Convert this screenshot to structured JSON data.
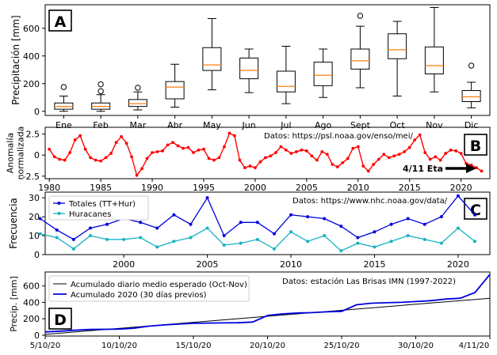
{
  "chart_data": [
    {
      "panel": "A",
      "type": "box",
      "ylabel": "Precipitación [mm]",
      "categories": [
        "Ene",
        "Feb",
        "Mar",
        "Abr",
        "May",
        "Jun",
        "Jul",
        "Ago",
        "Sept",
        "Oct",
        "Nov",
        "Dic"
      ],
      "yticks": [
        0,
        200,
        400,
        600
      ],
      "ylim": [
        -30,
        770
      ],
      "grid": false,
      "boxes": [
        {
          "whislo": 0,
          "q1": 15,
          "med": 35,
          "q3": 60,
          "whishi": 110,
          "fliers": [
            175
          ]
        },
        {
          "whislo": 0,
          "q1": 15,
          "med": 35,
          "q3": 60,
          "whishi": 120,
          "fliers": [
            195,
            145
          ]
        },
        {
          "whislo": 10,
          "q1": 35,
          "med": 55,
          "q3": 85,
          "whishi": 140,
          "fliers": [
            170
          ]
        },
        {
          "whislo": 30,
          "q1": 90,
          "med": 175,
          "q3": 215,
          "whishi": 340,
          "fliers": []
        },
        {
          "whislo": 155,
          "q1": 295,
          "med": 335,
          "q3": 460,
          "whishi": 670,
          "fliers": []
        },
        {
          "whislo": 135,
          "q1": 235,
          "med": 295,
          "q3": 385,
          "whishi": 450,
          "fliers": []
        },
        {
          "whislo": 55,
          "q1": 140,
          "med": 180,
          "q3": 290,
          "whishi": 470,
          "fliers": []
        },
        {
          "whislo": 100,
          "q1": 185,
          "med": 260,
          "q3": 355,
          "whishi": 450,
          "fliers": []
        },
        {
          "whislo": 170,
          "q1": 305,
          "med": 365,
          "q3": 450,
          "whishi": 615,
          "fliers": [
            690
          ]
        },
        {
          "whislo": 110,
          "q1": 380,
          "med": 445,
          "q3": 560,
          "whishi": 650,
          "fliers": []
        },
        {
          "whislo": 140,
          "q1": 270,
          "med": 330,
          "q3": 465,
          "whishi": 750,
          "fliers": []
        },
        {
          "whislo": 25,
          "q1": 70,
          "med": 105,
          "q3": 150,
          "whishi": 210,
          "fliers": [
            330
          ]
        }
      ],
      "colors": {
        "box": "#000000",
        "median": "#ff7f0e"
      }
    },
    {
      "panel": "B",
      "type": "line",
      "ylabel": [
        "Anomalía",
        "normalizada"
      ],
      "annotation": "Datos: https://psl.noaa.gov/enso/mei/",
      "arrow_label": "4/11 Eta",
      "xticks": [
        1980,
        1985,
        1990,
        1995,
        2000,
        2005,
        2010,
        2015,
        2020
      ],
      "yticks": [
        2.5,
        0,
        -2.5
      ],
      "ytick_labels": [
        "2.5",
        "0",
        "-2.5"
      ],
      "xlim": [
        1979.6,
        2022.8
      ],
      "ylim": [
        -2.8,
        3.3
      ],
      "color": "#ff0000",
      "x": [
        1980.0,
        1980.5,
        1981.0,
        1981.5,
        1982.0,
        1982.5,
        1983.0,
        1983.5,
        1984.0,
        1984.5,
        1985.0,
        1985.5,
        1986.0,
        1986.5,
        1987.0,
        1987.5,
        1988.0,
        1988.5,
        1989.0,
        1989.5,
        1990.0,
        1990.5,
        1991.0,
        1991.5,
        1992.0,
        1992.5,
        1993.0,
        1993.5,
        1994.0,
        1994.5,
        1995.0,
        1995.5,
        1996.0,
        1996.5,
        1997.0,
        1997.5,
        1998.0,
        1998.5,
        1999.0,
        1999.5,
        2000.0,
        2000.5,
        2001.0,
        2001.5,
        2002.0,
        2002.5,
        2003.0,
        2003.5,
        2004.0,
        2004.5,
        2005.0,
        2005.5,
        2006.0,
        2006.5,
        2007.0,
        2007.5,
        2008.0,
        2008.5,
        2009.0,
        2009.5,
        2010.0,
        2010.5,
        2011.0,
        2011.5,
        2012.0,
        2012.5,
        2013.0,
        2013.5,
        2014.0,
        2014.5,
        2015.0,
        2015.5,
        2016.0,
        2016.5,
        2017.0,
        2017.5,
        2018.0,
        2018.5,
        2019.0,
        2019.5,
        2020.0,
        2020.5,
        2021.0,
        2021.5,
        2022.0
      ],
      "y": [
        0.7,
        -0.2,
        -0.5,
        -0.6,
        0.3,
        1.8,
        2.3,
        0.7,
        -0.3,
        -0.6,
        -0.7,
        -0.3,
        0.2,
        1.5,
        2.2,
        1.4,
        -0.2,
        -2.4,
        -1.6,
        -0.4,
        0.3,
        0.4,
        0.5,
        1.2,
        1.5,
        1.1,
        0.8,
        0.9,
        0.3,
        0.6,
        0.7,
        -0.4,
        -0.6,
        -0.3,
        1.0,
        2.6,
        2.3,
        -0.6,
        -1.5,
        -1.3,
        -1.5,
        -0.8,
        -0.3,
        -0.1,
        0.3,
        1.0,
        0.6,
        0.2,
        0.4,
        0.6,
        0.5,
        -0.1,
        -0.6,
        0.4,
        0.1,
        -1.1,
        -1.4,
        -0.9,
        -0.4,
        0.8,
        1.0,
        -1.3,
        -1.9,
        -1.1,
        -0.5,
        0.1,
        -0.3,
        -0.1,
        0.1,
        0.4,
        0.9,
        1.8,
        2.4,
        0.3,
        -0.5,
        -0.2,
        -0.6,
        0.2,
        0.6,
        0.5,
        0.2,
        -1.0,
        -1.2,
        -1.5,
        -1.9
      ]
    },
    {
      "panel": "C",
      "type": "line",
      "ylabel": "Frecuencia",
      "annotation": "Datos: https://www.nhc.noaa.gov/data/",
      "xticks": [
        2000,
        2005,
        2010,
        2015,
        2020
      ],
      "yticks": [
        0,
        10,
        20,
        30
      ],
      "xlim": [
        1995.3,
        2021.9
      ],
      "ylim": [
        0,
        33
      ],
      "years": [
        1995,
        1996,
        1997,
        1998,
        1999,
        2000,
        2001,
        2002,
        2003,
        2004,
        2005,
        2006,
        2007,
        2008,
        2009,
        2010,
        2011,
        2012,
        2013,
        2014,
        2015,
        2016,
        2017,
        2018,
        2019,
        2020,
        2021
      ],
      "series": [
        {
          "name": "Totales (TT+Hur)",
          "color": "#0000dd",
          "values": [
            19,
            13,
            8,
            14,
            16,
            19,
            17,
            14,
            21,
            16,
            30,
            10,
            17,
            17,
            11,
            21,
            20,
            19,
            15,
            9,
            12,
            16,
            19,
            16,
            20,
            31,
            21
          ]
        },
        {
          "name": "Huracanes",
          "color": "#17b2c2",
          "values": [
            11,
            9,
            3,
            10,
            8,
            8,
            9,
            4,
            7,
            9,
            14,
            5,
            6,
            8,
            3,
            12,
            7,
            10,
            2,
            6,
            4,
            7,
            10,
            8,
            6,
            14,
            7
          ]
        }
      ]
    },
    {
      "panel": "D",
      "type": "line",
      "ylabel": "Precip. [mm]",
      "annotation": "Datos: estación Las Brisas IMN (1997-2022)",
      "xtick_labels": [
        "5/10/20",
        "10/10/20",
        "15/10/20",
        "20/10/20",
        "25/10/20",
        "30/10/20",
        "4/11/20"
      ],
      "xtick_days": [
        5,
        10,
        15,
        20,
        25,
        30,
        35
      ],
      "yticks": [
        0,
        200,
        400,
        600
      ],
      "xlim": [
        5,
        35
      ],
      "ylim": [
        -10,
        770
      ],
      "series": [
        {
          "name": "Acumulado diario medio esperado (Oct-Nov)",
          "color": "#000000",
          "x": [
            5,
            35
          ],
          "values": [
            10,
            450
          ]
        },
        {
          "name": "Acumulado 2020 (30 días previos)",
          "color": "#0000dd",
          "x": [
            5,
            6,
            7,
            8,
            9,
            10,
            11,
            12,
            13,
            14,
            15,
            16,
            17,
            18,
            19,
            20,
            21,
            22,
            23,
            24,
            25,
            26,
            27,
            28,
            29,
            30,
            31,
            32,
            33,
            34,
            35
          ],
          "values": [
            40,
            50,
            60,
            70,
            72,
            75,
            85,
            110,
            125,
            135,
            145,
            148,
            150,
            152,
            160,
            240,
            260,
            270,
            275,
            285,
            290,
            370,
            390,
            395,
            400,
            410,
            420,
            440,
            450,
            520,
            740
          ]
        }
      ]
    }
  ]
}
